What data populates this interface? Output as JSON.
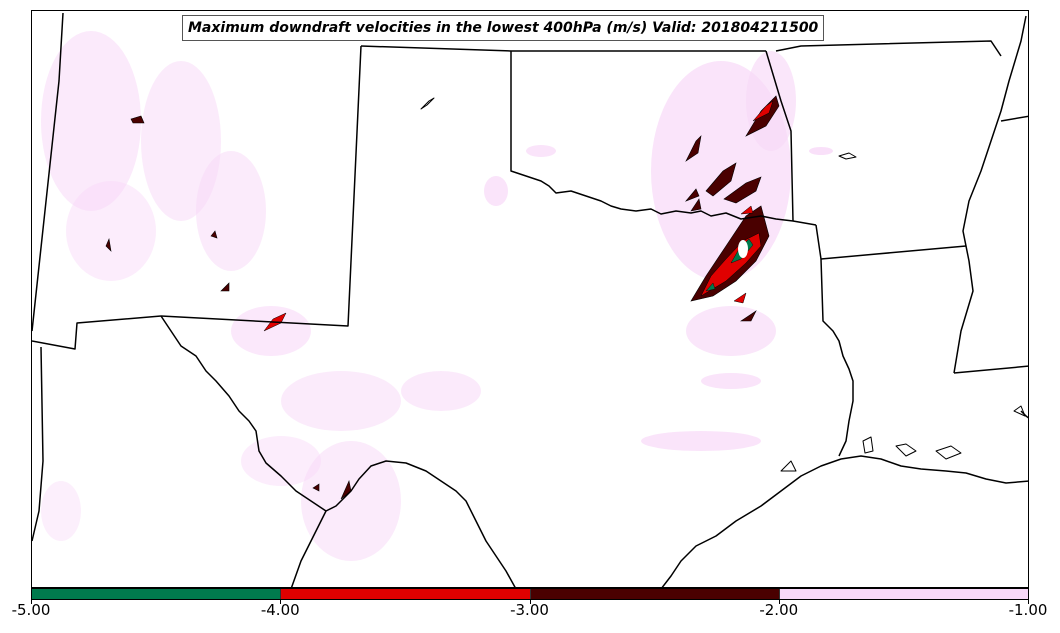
{
  "title": "Maximum downdraft velocities in the lowest 400hPa (m/s) Valid: 201804211500",
  "colorbar": {
    "ticks": [
      "-5.00",
      "-4.00",
      "-3.00",
      "-2.00",
      "-1.00"
    ],
    "bins": [
      {
        "range": [
          -5.0,
          -4.0
        ],
        "color": "#007a4d"
      },
      {
        "range": [
          -4.0,
          -3.0
        ],
        "color": "#e00000"
      },
      {
        "range": [
          -3.0,
          -2.0
        ],
        "color": "#4a0000"
      },
      {
        "range": [
          -2.0,
          -1.0
        ],
        "color": "#f8d8f8"
      }
    ]
  },
  "colors": {
    "boundary": "#000000",
    "weak": "#f8d8f8",
    "moderate": "#4a0000",
    "strong": "#e00000",
    "extreme": "#007a4d"
  }
}
